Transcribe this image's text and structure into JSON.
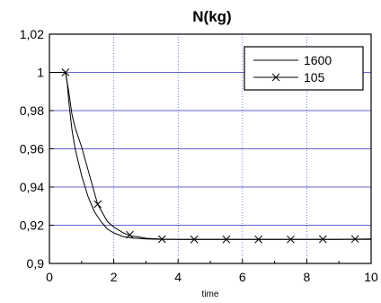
{
  "chart_data": {
    "type": "line",
    "title": "N(kg)",
    "xlabel": "time",
    "ylabel": "",
    "xlim": [
      0,
      10
    ],
    "ylim": [
      0.9,
      1.02
    ],
    "x_ticks": [
      "0",
      "2",
      "4",
      "6",
      "8",
      "10"
    ],
    "y_ticks": [
      "0,9",
      "0,92",
      "0,94",
      "0,96",
      "0,98",
      "1",
      "1,02"
    ],
    "grid": true,
    "grid_color": "#3030c0",
    "legend_position": "top-right",
    "series": [
      {
        "name": "1600",
        "marker": "none",
        "x": [
          0,
          0.5,
          0.55,
          0.6,
          0.7,
          0.8,
          1.0,
          1.2,
          1.4,
          1.6,
          1.8,
          2.0,
          2.3,
          2.6,
          3.0,
          3.5,
          4.0,
          5.0,
          6.0,
          7.0,
          8.0,
          9.0,
          10.0
        ],
        "y": [
          1.0,
          1.0,
          0.995,
          0.985,
          0.97,
          0.96,
          0.946,
          0.935,
          0.927,
          0.922,
          0.918,
          0.916,
          0.914,
          0.9133,
          0.9128,
          0.9126,
          0.9126,
          0.9126,
          0.9126,
          0.9126,
          0.9126,
          0.9126,
          0.9126
        ]
      },
      {
        "name": "105",
        "marker": "x",
        "x": [
          0,
          0.5,
          0.6,
          0.7,
          0.8,
          0.9,
          1.0,
          1.2,
          1.5,
          1.8,
          2.0,
          2.3,
          2.5,
          2.8,
          3.0,
          3.5,
          4.0,
          5.0,
          6.0,
          7.0,
          8.0,
          9.0,
          10.0
        ],
        "y": [
          1.0,
          1.0,
          0.99,
          0.978,
          0.971,
          0.966,
          0.961,
          0.949,
          0.931,
          0.922,
          0.919,
          0.916,
          0.9145,
          0.9138,
          0.9132,
          0.9127,
          0.9126,
          0.9126,
          0.9126,
          0.9126,
          0.9126,
          0.9126,
          0.9128
        ],
        "marker_x": [
          0.5,
          1.5,
          2.5,
          3.5,
          4.5,
          5.5,
          6.5,
          7.5,
          8.5,
          9.5
        ],
        "marker_y": [
          1.0,
          0.931,
          0.915,
          0.9127,
          0.9126,
          0.9126,
          0.9126,
          0.9126,
          0.9127,
          0.9128
        ]
      }
    ]
  }
}
